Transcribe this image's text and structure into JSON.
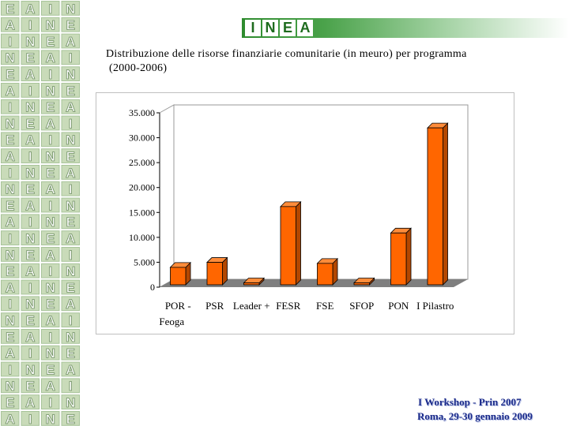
{
  "header": {
    "logo_letters": [
      "I",
      "N",
      "E",
      "A"
    ],
    "accent_color": "#2e8b2e"
  },
  "slide": {
    "title_line1": "Distribuzione delle risorse finanziarie comunitarie (in meuro) per programma",
    "title_line2": "(2000-2006)"
  },
  "footer": {
    "line1": "I  Workshop - Prin 2007",
    "line2": "Roma, 29-30 gennaio 2009"
  },
  "chart_data": {
    "type": "bar",
    "title": "",
    "xlabel": "",
    "ylabel": "",
    "categories": [
      "POR - Feoga",
      "PSR",
      "Leader +",
      "FESR",
      "FSE",
      "SFOP",
      "PON",
      "I Pilastro"
    ],
    "category_lines": [
      [
        "POR -",
        "Feoga"
      ],
      [
        "PSR"
      ],
      [
        "Leader +"
      ],
      [
        "FESR"
      ],
      [
        "FSE"
      ],
      [
        "SFOP"
      ],
      [
        "PON"
      ],
      [
        "I Pilastro"
      ]
    ],
    "values": [
      3500,
      4500,
      400,
      15700,
      4300,
      400,
      10400,
      31500
    ],
    "ylim": [
      0,
      35000
    ],
    "yticks": [
      0,
      5000,
      10000,
      15000,
      20000,
      25000,
      30000,
      35000
    ],
    "ytick_labels": [
      "0",
      "5.000",
      "10.000",
      "15.000",
      "20.000",
      "25.000",
      "30.000",
      "35.000"
    ],
    "grid": false,
    "bar_color": "#ff6600",
    "legend": "none"
  }
}
